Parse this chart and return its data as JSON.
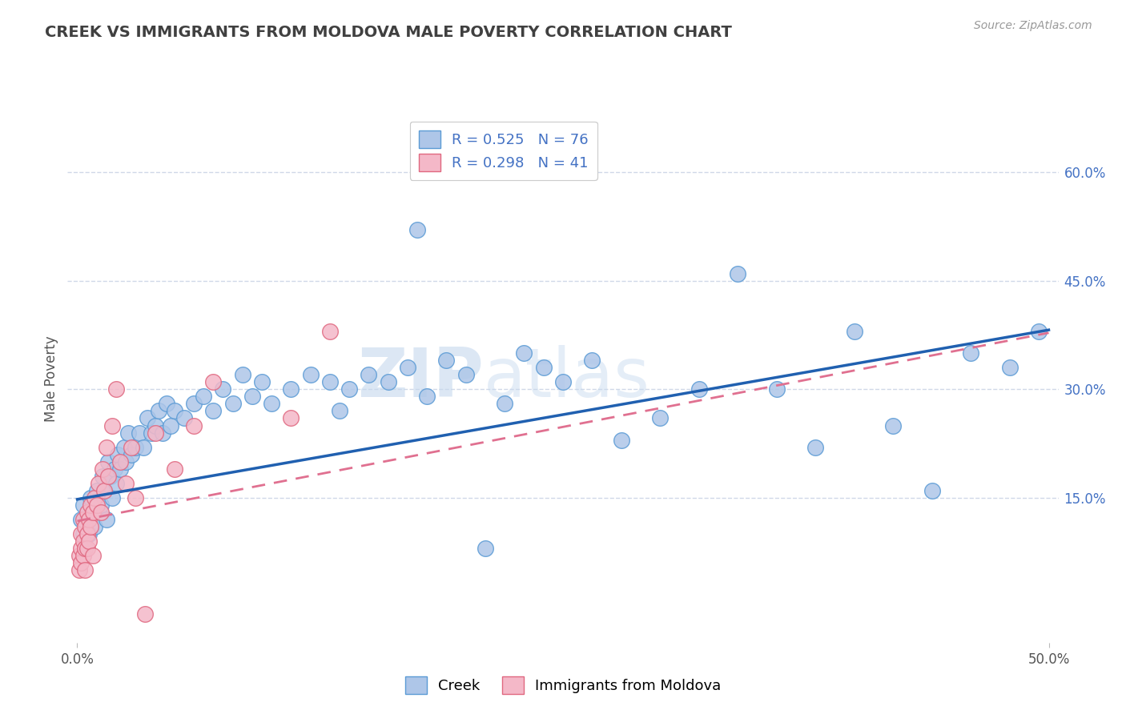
{
  "title": "CREEK VS IMMIGRANTS FROM MOLDOVA MALE POVERTY CORRELATION CHART",
  "source": "Source: ZipAtlas.com",
  "ylabel": "Male Poverty",
  "right_yticks": [
    "15.0%",
    "30.0%",
    "45.0%",
    "60.0%"
  ],
  "right_ytick_vals": [
    0.15,
    0.3,
    0.45,
    0.6
  ],
  "xlim": [
    -0.005,
    0.505
  ],
  "ylim": [
    -0.05,
    0.68
  ],
  "creek_color": "#aec6e8",
  "creek_edge_color": "#5b9bd5",
  "moldova_color": "#f4b8c8",
  "moldova_edge_color": "#e06880",
  "creek_line_color": "#2060b0",
  "moldova_line_color": "#e07090",
  "R_creek": 0.525,
  "N_creek": 76,
  "R_moldova": 0.298,
  "N_moldova": 41,
  "legend_label_creek": "Creek",
  "legend_label_moldova": "Immigrants from Moldova",
  "watermark_zip": "ZIP",
  "watermark_atlas": "atlas",
  "background_color": "#ffffff",
  "grid_color": "#d0d8e8",
  "title_color": "#404040",
  "creek_x": [
    0.002,
    0.003,
    0.003,
    0.004,
    0.005,
    0.006,
    0.007,
    0.008,
    0.009,
    0.01,
    0.012,
    0.013,
    0.014,
    0.015,
    0.016,
    0.017,
    0.018,
    0.019,
    0.02,
    0.021,
    0.022,
    0.024,
    0.025,
    0.026,
    0.028,
    0.03,
    0.032,
    0.034,
    0.036,
    0.038,
    0.04,
    0.042,
    0.044,
    0.046,
    0.048,
    0.05,
    0.055,
    0.06,
    0.065,
    0.07,
    0.075,
    0.08,
    0.085,
    0.09,
    0.095,
    0.1,
    0.11,
    0.12,
    0.13,
    0.14,
    0.15,
    0.16,
    0.17,
    0.18,
    0.19,
    0.2,
    0.21,
    0.22,
    0.23,
    0.24,
    0.25,
    0.265,
    0.28,
    0.3,
    0.32,
    0.34,
    0.36,
    0.38,
    0.4,
    0.42,
    0.44,
    0.46,
    0.48,
    0.495,
    0.175,
    0.135
  ],
  "creek_y": [
    0.12,
    0.1,
    0.14,
    0.08,
    0.12,
    0.1,
    0.15,
    0.13,
    0.11,
    0.16,
    0.14,
    0.18,
    0.16,
    0.12,
    0.2,
    0.18,
    0.15,
    0.19,
    0.17,
    0.21,
    0.19,
    0.22,
    0.2,
    0.24,
    0.21,
    0.22,
    0.24,
    0.22,
    0.26,
    0.24,
    0.25,
    0.27,
    0.24,
    0.28,
    0.25,
    0.27,
    0.26,
    0.28,
    0.29,
    0.27,
    0.3,
    0.28,
    0.32,
    0.29,
    0.31,
    0.28,
    0.3,
    0.32,
    0.31,
    0.3,
    0.32,
    0.31,
    0.33,
    0.29,
    0.34,
    0.32,
    0.08,
    0.28,
    0.35,
    0.33,
    0.31,
    0.34,
    0.23,
    0.26,
    0.3,
    0.46,
    0.3,
    0.22,
    0.38,
    0.25,
    0.16,
    0.35,
    0.33,
    0.38,
    0.52,
    0.27
  ],
  "moldova_x": [
    0.001,
    0.001,
    0.002,
    0.002,
    0.002,
    0.003,
    0.003,
    0.003,
    0.004,
    0.004,
    0.004,
    0.005,
    0.005,
    0.005,
    0.006,
    0.006,
    0.007,
    0.007,
    0.008,
    0.008,
    0.009,
    0.01,
    0.011,
    0.012,
    0.013,
    0.014,
    0.015,
    0.016,
    0.018,
    0.02,
    0.022,
    0.025,
    0.028,
    0.03,
    0.035,
    0.04,
    0.05,
    0.06,
    0.07,
    0.11,
    0.13
  ],
  "moldova_y": [
    0.07,
    0.05,
    0.08,
    0.06,
    0.1,
    0.09,
    0.07,
    0.12,
    0.11,
    0.08,
    0.05,
    0.1,
    0.08,
    0.13,
    0.12,
    0.09,
    0.14,
    0.11,
    0.13,
    0.07,
    0.15,
    0.14,
    0.17,
    0.13,
    0.19,
    0.16,
    0.22,
    0.18,
    0.25,
    0.3,
    0.2,
    0.17,
    0.22,
    0.15,
    -0.01,
    0.24,
    0.19,
    0.25,
    0.31,
    0.26,
    0.38
  ],
  "creek_trendline_x": [
    0.0,
    0.5
  ],
  "creek_trendline_y": [
    0.148,
    0.382
  ],
  "moldova_trendline_x": [
    0.0,
    0.5
  ],
  "moldova_trendline_y": [
    0.118,
    0.378
  ]
}
